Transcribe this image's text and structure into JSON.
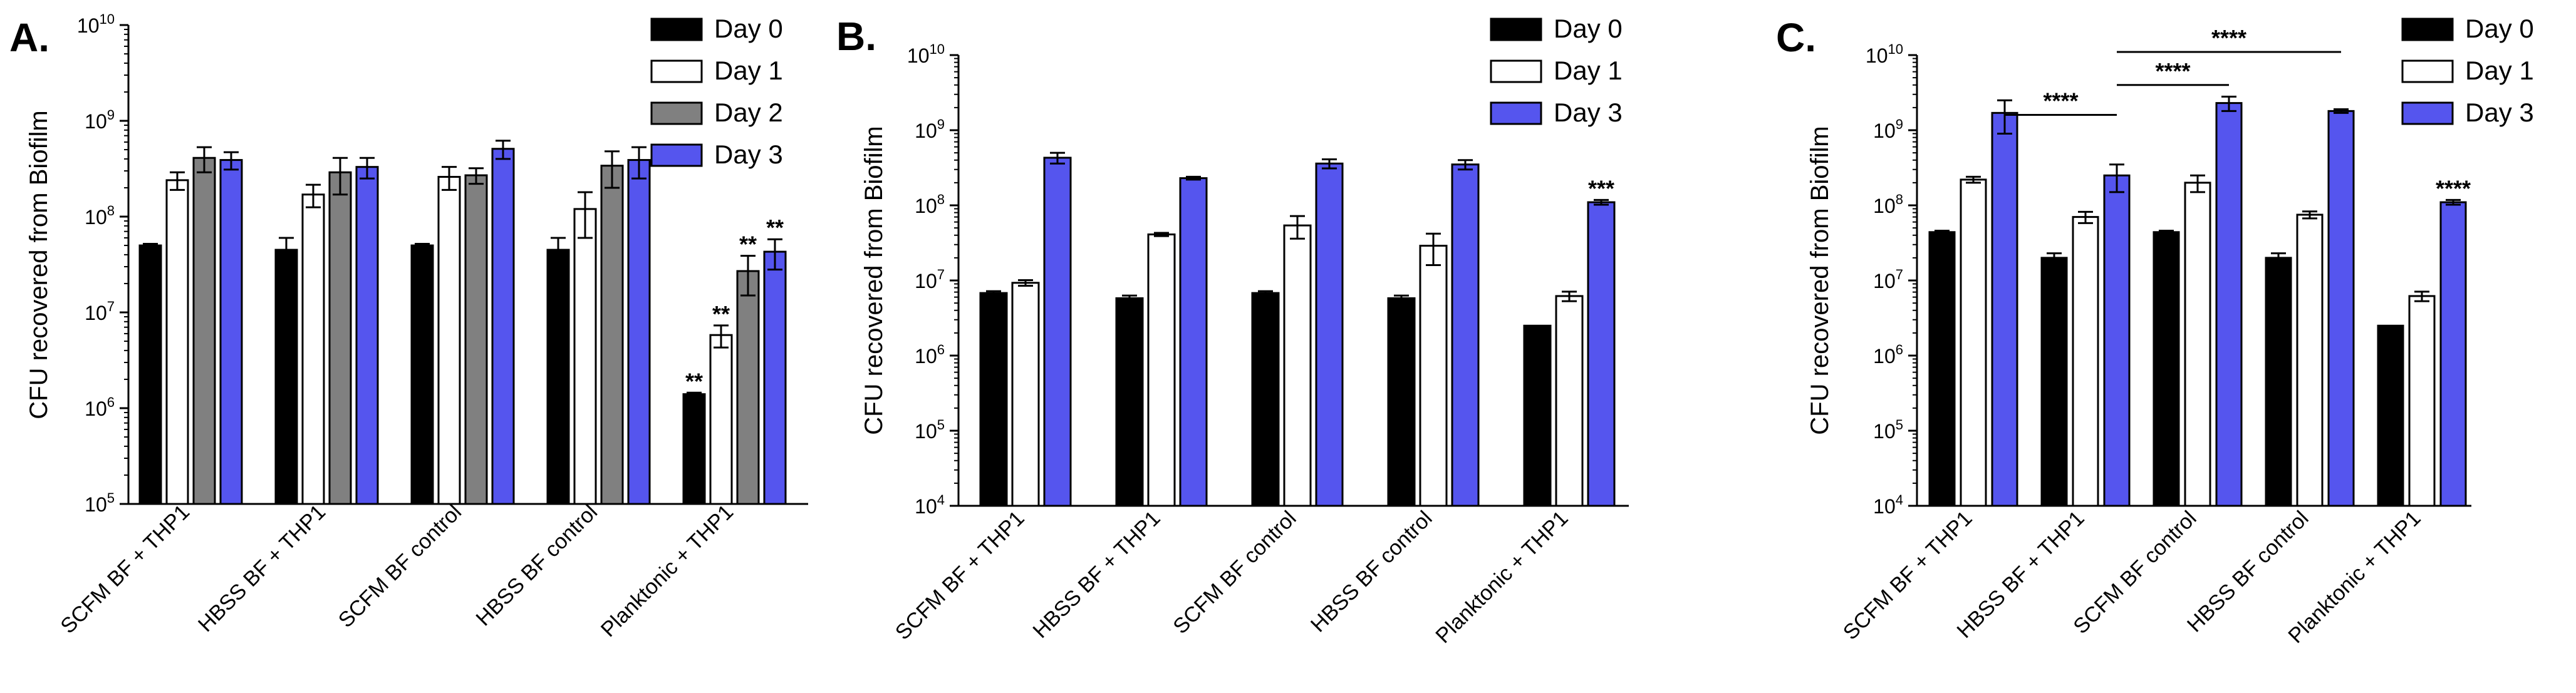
{
  "chart_data": [
    {
      "type": "bar",
      "panel_label": "A.",
      "ylabel": "CFU recovered from Biofilm",
      "yscale": "log",
      "ylim": [
        100000,
        10000000000
      ],
      "yticks": [
        {
          "value": 100000,
          "base": "10",
          "exp": "5"
        },
        {
          "value": 1000000,
          "base": "10",
          "exp": "6"
        },
        {
          "value": 10000000,
          "base": "10",
          "exp": "7"
        },
        {
          "value": 100000000,
          "base": "10",
          "exp": "8"
        },
        {
          "value": 1000000000,
          "base": "10",
          "exp": "9"
        },
        {
          "value": 10000000000,
          "base": "10",
          "exp": "10"
        }
      ],
      "categories": [
        "SCFM BF + THP1",
        "HBSS BF + THP1",
        "SCFM BF control",
        "HBSS BF control",
        "Planktonic + THP1"
      ],
      "legend": [
        "Day 0",
        "Day 1",
        "Day 2",
        "Day 3"
      ],
      "series": [
        {
          "name": "Day 0",
          "color": "#000000",
          "values": [
            50000000,
            45000000,
            50000000,
            45000000,
            1400000
          ],
          "errors": [
            2000000,
            15000000,
            2000000,
            15000000,
            50000
          ]
        },
        {
          "name": "Day 1",
          "color": "#ffffff",
          "values": [
            240000000,
            170000000,
            260000000,
            120000000,
            5800000
          ],
          "errors": [
            50000000,
            45000000,
            70000000,
            60000000,
            1500000
          ]
        },
        {
          "name": "Day 2",
          "color": "#808080",
          "values": [
            410000000,
            290000000,
            270000000,
            340000000,
            27000000
          ],
          "errors": [
            120000000,
            120000000,
            50000000,
            140000000,
            12000000
          ]
        },
        {
          "name": "Day 3",
          "color": "#5555ee",
          "values": [
            390000000,
            330000000,
            510000000,
            390000000,
            43000000
          ],
          "errors": [
            80000000,
            80000000,
            110000000,
            140000000,
            15000000
          ]
        }
      ],
      "annotations": [
        {
          "category": 4,
          "series": 0,
          "text": "**"
        },
        {
          "category": 4,
          "series": 1,
          "text": "**"
        },
        {
          "category": 4,
          "series": 2,
          "text": "**"
        },
        {
          "category": 4,
          "series": 3,
          "text": "**"
        }
      ],
      "brackets": []
    },
    {
      "type": "bar",
      "panel_label": "B.",
      "ylabel": "CFU recovered from Biofilm",
      "yscale": "log",
      "ylim": [
        10000,
        10000000000
      ],
      "yticks": [
        {
          "value": 10000,
          "base": "10",
          "exp": "4"
        },
        {
          "value": 100000,
          "base": "10",
          "exp": "5"
        },
        {
          "value": 1000000,
          "base": "10",
          "exp": "6"
        },
        {
          "value": 10000000,
          "base": "10",
          "exp": "7"
        },
        {
          "value": 100000000,
          "base": "10",
          "exp": "8"
        },
        {
          "value": 1000000000,
          "base": "10",
          "exp": "9"
        },
        {
          "value": 10000000000,
          "base": "10",
          "exp": "10"
        }
      ],
      "categories": [
        "SCFM BF + THP1",
        "HBSS BF + THP1",
        "SCFM BF control",
        "HBSS BF control",
        "Planktonic + THP1"
      ],
      "legend": [
        "Day 0",
        "Day 1",
        "Day 3"
      ],
      "series": [
        {
          "name": "Day 0",
          "color": "#000000",
          "values": [
            6800000,
            5800000,
            6800000,
            5800000,
            2500000
          ],
          "errors": [
            400000,
            500000,
            400000,
            500000,
            0
          ]
        },
        {
          "name": "Day 1",
          "color": "#ffffff",
          "values": [
            9300000,
            41000000,
            54000000,
            29000000,
            6200000
          ],
          "errors": [
            800000,
            2000000,
            18000000,
            13000000,
            900000
          ]
        },
        {
          "name": "Day 3",
          "color": "#5555ee",
          "values": [
            430000000,
            230000000,
            360000000,
            350000000,
            110000000
          ],
          "errors": [
            70000000,
            10000000,
            50000000,
            50000000,
            8000000
          ]
        }
      ],
      "annotations": [
        {
          "category": 4,
          "series": 2,
          "text": "***"
        }
      ],
      "brackets": []
    },
    {
      "type": "bar",
      "panel_label": "C.",
      "ylabel": "CFU recovered from Biofilm",
      "yscale": "log",
      "ylim": [
        10000,
        10000000000
      ],
      "yticks": [
        {
          "value": 10000,
          "base": "10",
          "exp": "4"
        },
        {
          "value": 100000,
          "base": "10",
          "exp": "5"
        },
        {
          "value": 1000000,
          "base": "10",
          "exp": "6"
        },
        {
          "value": 10000000,
          "base": "10",
          "exp": "7"
        },
        {
          "value": 100000000,
          "base": "10",
          "exp": "8"
        },
        {
          "value": 1000000000,
          "base": "10",
          "exp": "9"
        },
        {
          "value": 10000000000,
          "base": "10",
          "exp": "10"
        }
      ],
      "categories": [
        "SCFM BF + THP1",
        "HBSS BF + THP1",
        "SCFM BF control",
        "HBSS BF control",
        "Planktonic + THP1"
      ],
      "legend": [
        "Day 0",
        "Day 1",
        "Day 3"
      ],
      "series": [
        {
          "name": "Day 0",
          "color": "#000000",
          "values": [
            44000000,
            20000000,
            44000000,
            20000000,
            2500000
          ],
          "errors": [
            2000000,
            3000000,
            2000000,
            3000000,
            0
          ]
        },
        {
          "name": "Day 1",
          "color": "#ffffff",
          "values": [
            220000000,
            70000000,
            200000000,
            75000000,
            6200000
          ],
          "errors": [
            20000000,
            12000000,
            50000000,
            8000000,
            900000
          ]
        },
        {
          "name": "Day 3",
          "color": "#5555ee",
          "values": [
            1700000000,
            250000000,
            2300000000,
            1800000000,
            110000000
          ],
          "errors": [
            800000000,
            100000000,
            500000000,
            100000000,
            8000000
          ]
        }
      ],
      "annotations": [
        {
          "category": 4,
          "series": 2,
          "text": "****"
        }
      ],
      "brackets": [
        {
          "text": "****",
          "from_category": 0,
          "to_category": 1,
          "level": 1600000000
        },
        {
          "text": "****",
          "from_category": 1,
          "to_category": 2,
          "level": 4000000000
        },
        {
          "text": "****",
          "from_category": 1,
          "to_category": 3,
          "level": 11000000000
        }
      ]
    }
  ]
}
